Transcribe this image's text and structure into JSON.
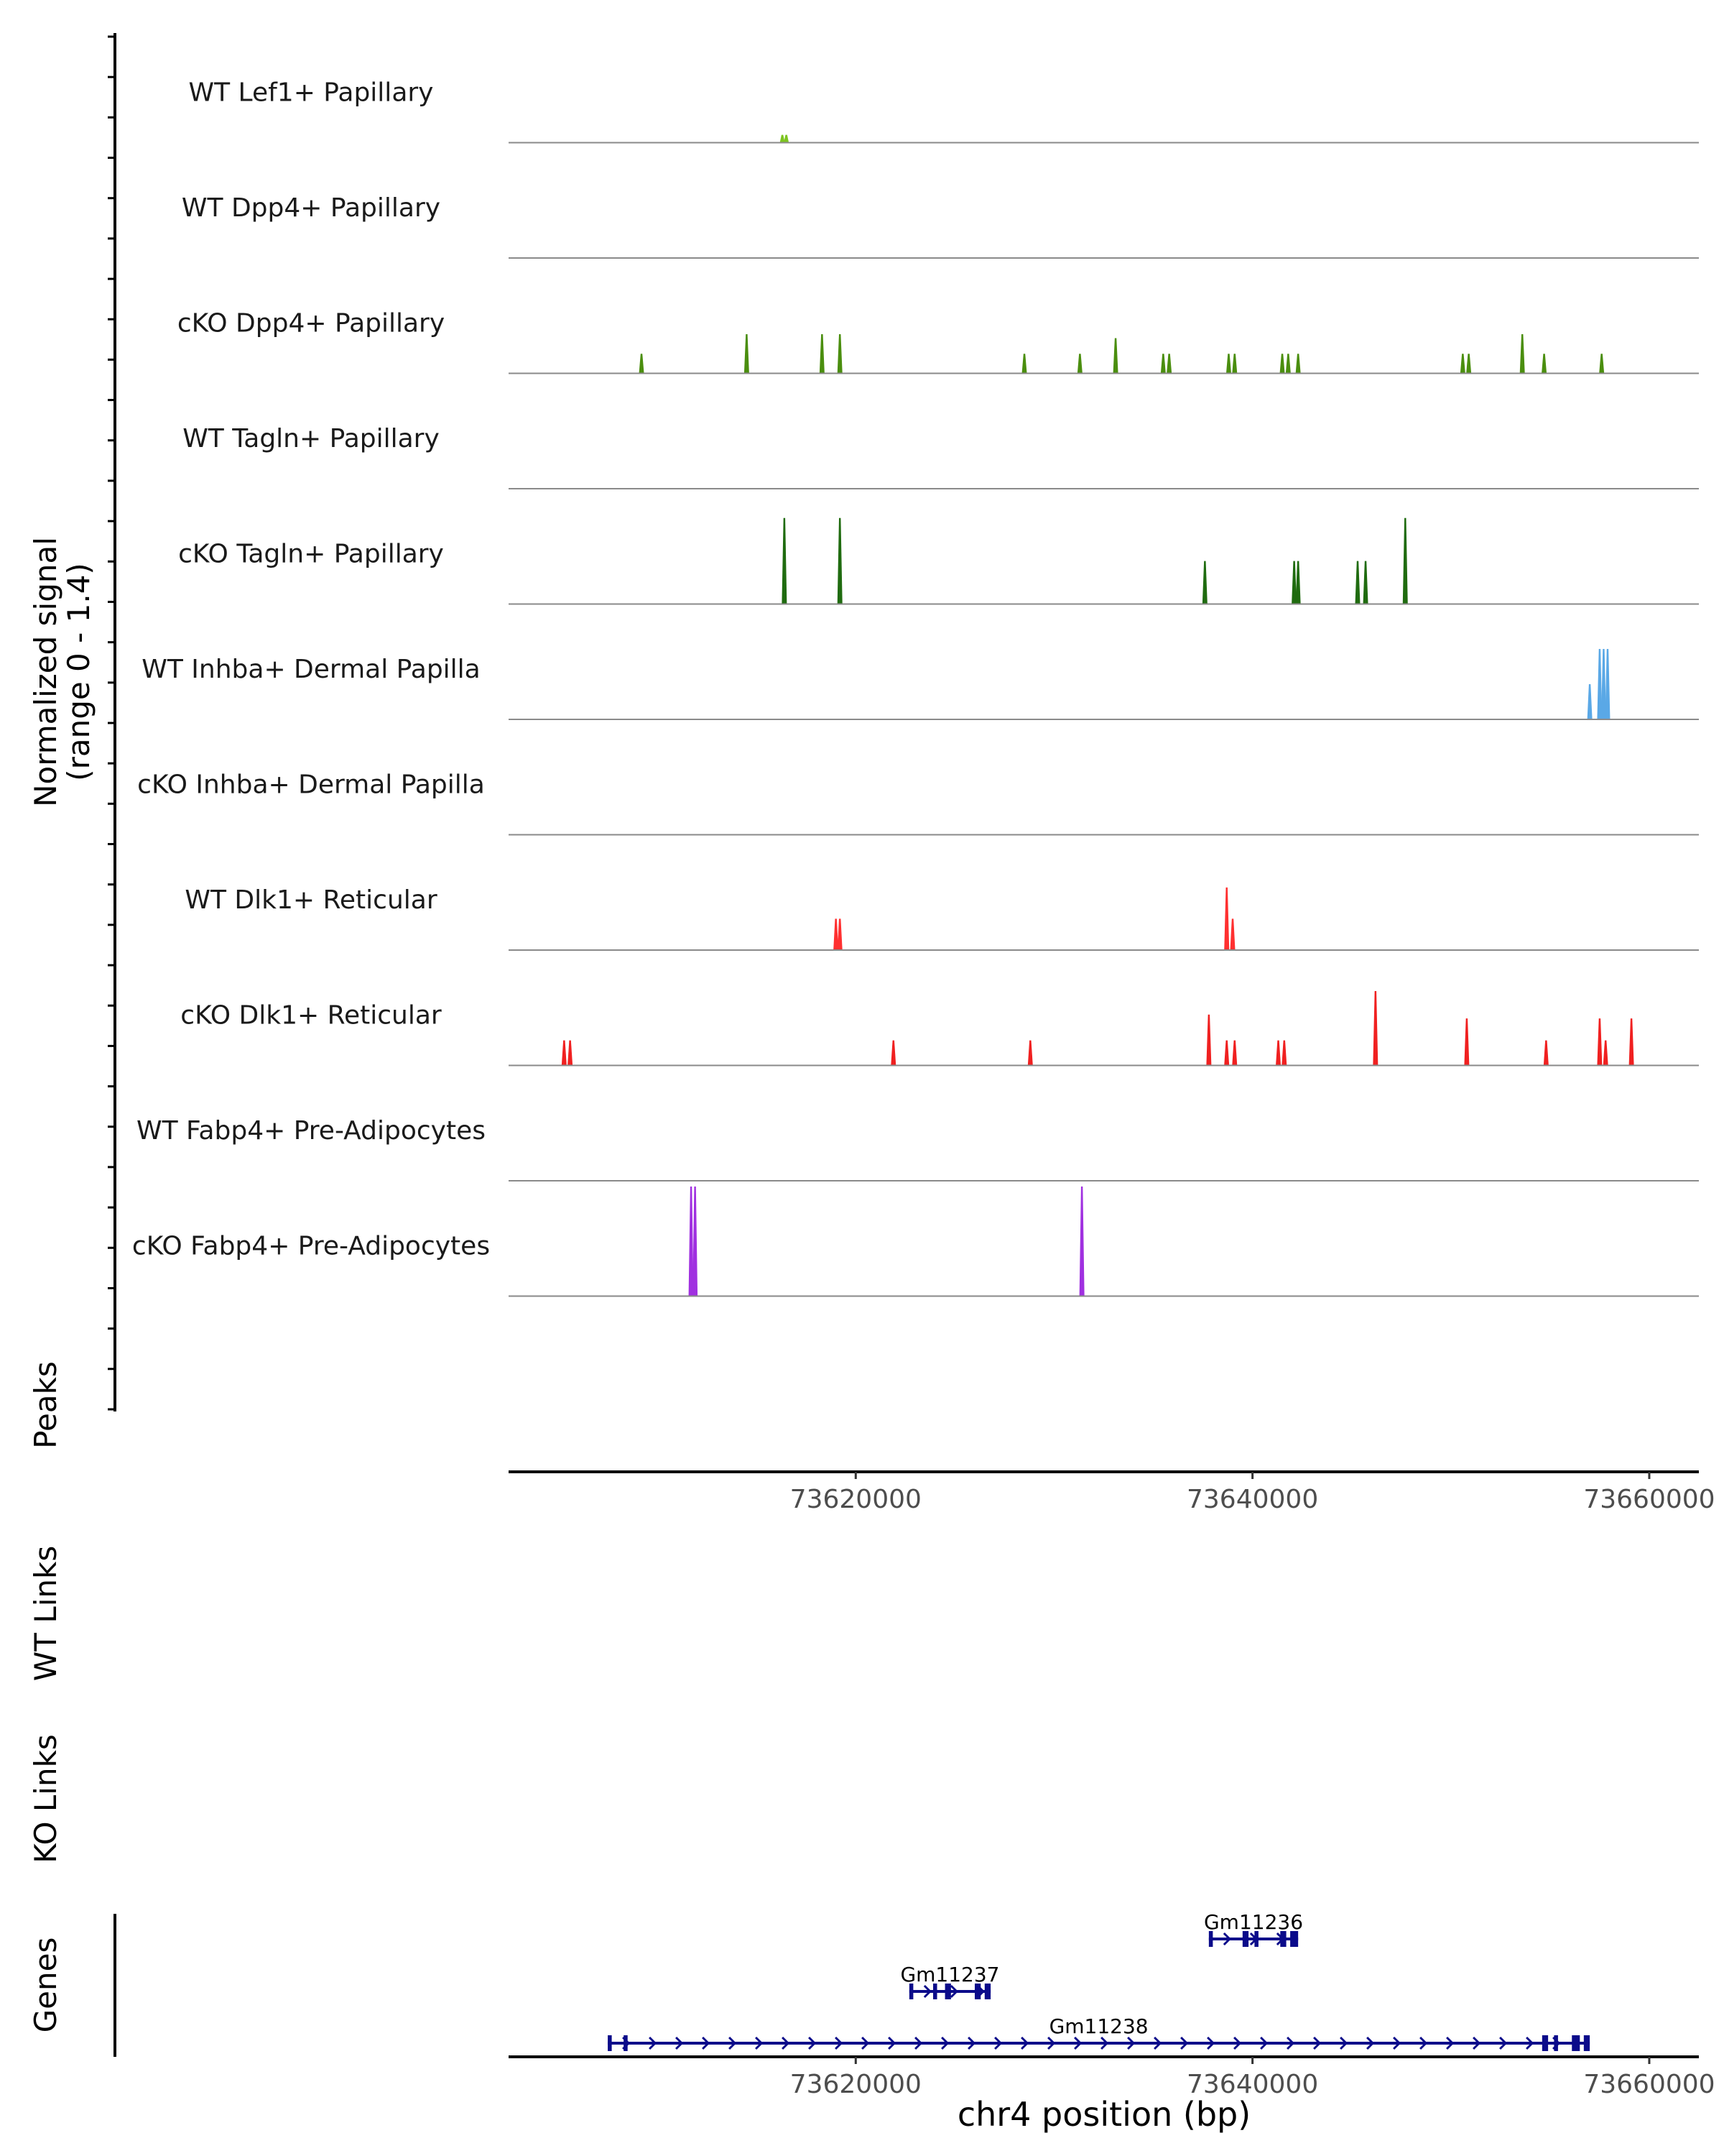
{
  "chart_data": {
    "type": "coverage-track",
    "signal": {
      "ylabel_line1": "Normalized signal",
      "ylabel_line2": "(range 0 - 1.4)",
      "ylim": [
        0,
        1.4
      ],
      "tracks": [
        {
          "name": "WT Lef1+ Papillary",
          "color": "#7cc41f",
          "peaks": [
            [
              73616300,
              0.1
            ],
            [
              73616500,
              0.1
            ]
          ]
        },
        {
          "name": "WT Dpp4+ Papillary",
          "color": "#5a9e12",
          "peaks": []
        },
        {
          "name": "cKO Dpp4+ Papillary",
          "color": "#4a8e0e",
          "peaks": [
            [
              73609200,
              0.25
            ],
            [
              73614500,
              0.5
            ],
            [
              73618300,
              0.5
            ],
            [
              73619200,
              0.5
            ],
            [
              73628500,
              0.25
            ],
            [
              73631300,
              0.25
            ],
            [
              73633100,
              0.45
            ],
            [
              73635500,
              0.25
            ],
            [
              73635800,
              0.25
            ],
            [
              73638800,
              0.25
            ],
            [
              73639100,
              0.25
            ],
            [
              73641500,
              0.25
            ],
            [
              73641800,
              0.25
            ],
            [
              73642300,
              0.25
            ],
            [
              73650600,
              0.25
            ],
            [
              73650900,
              0.25
            ],
            [
              73653600,
              0.5
            ],
            [
              73654700,
              0.25
            ],
            [
              73657600,
              0.25
            ]
          ]
        },
        {
          "name": "WT Tagln+ Papillary",
          "color": "#2d7a1a",
          "peaks": []
        },
        {
          "name": "cKO Tagln+ Papillary",
          "color": "#1f6b0f",
          "peaks": [
            [
              73616400,
              1.1
            ],
            [
              73619200,
              1.1
            ],
            [
              73637600,
              0.55
            ],
            [
              73642100,
              0.55
            ],
            [
              73642300,
              0.55
            ],
            [
              73645300,
              0.55
            ],
            [
              73645700,
              0.55
            ],
            [
              73647700,
              1.1
            ]
          ]
        },
        {
          "name": "WT Inhba+ Dermal Papilla",
          "color": "#5aa8e6",
          "peaks": [
            [
              73657000,
              0.45
            ],
            [
              73657500,
              0.9
            ],
            [
              73657700,
              0.9
            ],
            [
              73657900,
              0.9
            ]
          ]
        },
        {
          "name": "cKO Inhba+ Dermal Papilla",
          "color": "#4a98d6",
          "peaks": []
        },
        {
          "name": "WT Dlk1+ Reticular",
          "color": "#ff3030",
          "peaks": [
            [
              73619000,
              0.4
            ],
            [
              73619200,
              0.4
            ],
            [
              73638700,
              0.8
            ],
            [
              73639000,
              0.4
            ]
          ]
        },
        {
          "name": "cKO Dlk1+ Reticular",
          "color": "#f02020",
          "peaks": [
            [
              73605300,
              0.32
            ],
            [
              73605600,
              0.32
            ],
            [
              73621900,
              0.32
            ],
            [
              73628800,
              0.32
            ],
            [
              73637800,
              0.65
            ],
            [
              73638700,
              0.32
            ],
            [
              73639100,
              0.32
            ],
            [
              73641300,
              0.32
            ],
            [
              73641600,
              0.32
            ],
            [
              73646200,
              0.95
            ],
            [
              73650800,
              0.6
            ],
            [
              73654800,
              0.32
            ],
            [
              73657500,
              0.6
            ],
            [
              73657800,
              0.32
            ],
            [
              73659100,
              0.6
            ]
          ]
        },
        {
          "name": "WT Fabp4+ Pre-Adipocytes",
          "color": "#b24de8",
          "peaks": []
        },
        {
          "name": "cKO Fabp4+ Pre-Adipocytes",
          "color": "#a030e0",
          "peaks": [
            [
              73611700,
              1.4
            ],
            [
              73611900,
              1.4
            ],
            [
              73631400,
              1.4
            ]
          ]
        }
      ]
    },
    "x_range": [
      73602500,
      73662500
    ],
    "x_ticks": [
      "73620000",
      "73640000",
      "73660000"
    ],
    "x_tick_values": [
      73620000,
      73640000,
      73660000
    ],
    "panels": {
      "peaks": "Peaks",
      "wt_links": "WT Links",
      "ko_links": "KO Links",
      "genes": "Genes"
    },
    "genes": [
      {
        "name": "Gm11236",
        "start": 73637800,
        "end": 73642300,
        "row": 0,
        "exons": [
          [
            73637800,
            73638000
          ],
          [
            73639500,
            73639800
          ],
          [
            73640100,
            73640300
          ],
          [
            73641400,
            73641700
          ],
          [
            73641900,
            73642300
          ]
        ]
      },
      {
        "name": "Gm11237",
        "start": 73622700,
        "end": 73626800,
        "row": 1,
        "exons": [
          [
            73622700,
            73622900
          ],
          [
            73623900,
            73624100
          ],
          [
            73624500,
            73624800
          ],
          [
            73626000,
            73626300
          ],
          [
            73626500,
            73626800
          ]
        ]
      },
      {
        "name": "Gm11238",
        "start": 73607500,
        "end": 73657000,
        "row": 2,
        "exons": [
          [
            73607500,
            73607700
          ],
          [
            73608300,
            73608500
          ],
          [
            73654600,
            73654900
          ],
          [
            73655200,
            73655400
          ],
          [
            73656100,
            73656500
          ],
          [
            73656700,
            73657000
          ]
        ]
      }
    ],
    "xlabel": "chr4 position (bp)"
  }
}
